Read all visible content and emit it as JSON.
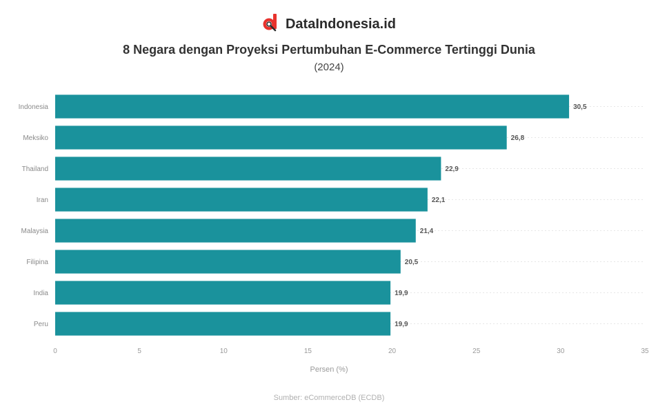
{
  "brand": {
    "name": "DataIndonesia.id",
    "logo_icon": "dataindonesia-logo-icon",
    "logo_color": "#e8322d"
  },
  "chart_data": {
    "type": "bar",
    "orientation": "horizontal",
    "title": "8 Negara dengan Proyeksi Pertumbuhan E-Commerce Tertinggi Dunia",
    "subtitle": "(2024)",
    "categories": [
      "Indonesia",
      "Meksiko",
      "Thailand",
      "Iran",
      "Malaysia",
      "Filipina",
      "India",
      "Peru"
    ],
    "values": [
      30.5,
      26.8,
      22.9,
      22.1,
      21.4,
      20.5,
      19.9,
      19.9
    ],
    "value_labels": [
      "30,5",
      "26,8",
      "22,9",
      "22,1",
      "21,4",
      "20,5",
      "19,9",
      "19,9"
    ],
    "xlabel": "Persen (%)",
    "ylabel": "",
    "xlim": [
      0,
      35
    ],
    "x_ticks": [
      0,
      5,
      10,
      15,
      20,
      25,
      30,
      35
    ],
    "grid": true,
    "bar_color": "#1a929c",
    "source": "Sumber: eCommerceDB (ECDB)"
  }
}
